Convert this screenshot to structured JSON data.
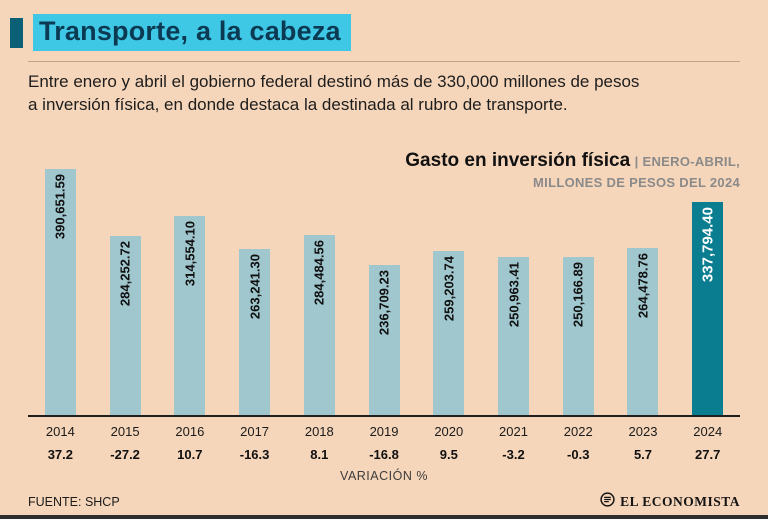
{
  "header": {
    "title": "Transporte, a la cabeza",
    "subtitle_line1": "Entre enero y abril el gobierno federal destinó más de 330,000 millones de pesos",
    "subtitle_line2": "a inversión física, en donde destaca la destinada al rubro de transporte."
  },
  "chart_data": {
    "type": "bar",
    "title": "Gasto en inversión física",
    "note_line1": "| ENERO-ABRIL,",
    "note_line2": "MILLONES DE PESOS DEL 2024",
    "categories": [
      "2014",
      "2015",
      "2016",
      "2017",
      "2018",
      "2019",
      "2020",
      "2021",
      "2022",
      "2023",
      "2024"
    ],
    "series": [
      {
        "name": "Gasto en inversión física (millones de pesos del 2024)",
        "values": [
          390651.59,
          284252.72,
          314554.1,
          263241.3,
          284484.56,
          236709.23,
          259203.74,
          250963.41,
          250166.89,
          264478.76,
          337794.4
        ],
        "labels": [
          "390,651.59",
          "284,252.72",
          "314,554.10",
          "263,241.30",
          "284,484.56",
          "236,709.23",
          "259,203.74",
          "250,963.41",
          "250,166.89",
          "264,478.76",
          "337,794.40"
        ]
      },
      {
        "name": "Variación %",
        "values": [
          37.2,
          -27.2,
          10.7,
          -16.3,
          8.1,
          -16.8,
          9.5,
          -3.2,
          -0.3,
          5.7,
          27.7
        ],
        "labels": [
          "37.2",
          "-27.2",
          "10.7",
          "-16.3",
          "8.1",
          "-16.8",
          "9.5",
          "-3.2",
          "-0.3",
          "5.7",
          "27.7"
        ]
      }
    ],
    "highlight_index": 10,
    "ylim": [
      0,
      390651.59
    ],
    "xlabel": "VARIACIÓN %",
    "legend": "none",
    "grid": false,
    "bar_color": "#a0c6ce",
    "highlight_color": "#0a7d90"
  },
  "footer": {
    "source": "FUENTE: SHCP",
    "brand": "EL ECONOMISTA"
  },
  "colors": {
    "background": "#f6d6ba",
    "title_highlight": "#3fc8e6",
    "title_text": "#0b3a52",
    "accent_square": "#0b6075",
    "baseline": "#1f1f1f"
  }
}
